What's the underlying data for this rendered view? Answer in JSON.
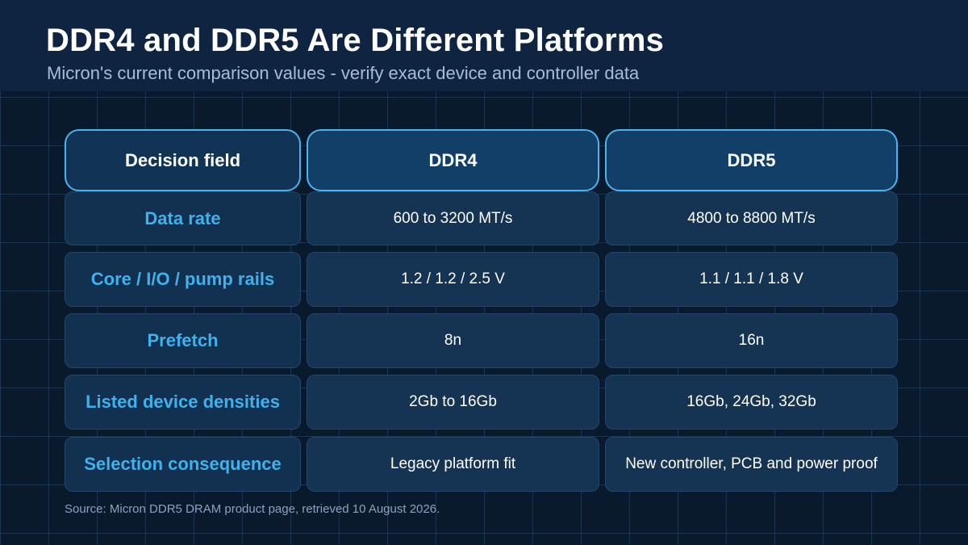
{
  "page": {
    "title": "DDR4 and DDR5 Are Different Platforms",
    "subtitle": "Micron's current comparison values - verify exact device and controller data",
    "source": "Source: Micron DDR5 DRAM product page, retrieved 10 August 2026."
  },
  "table": {
    "headers": [
      "Decision field",
      "DDR4",
      "DDR5"
    ],
    "rows": [
      {
        "field": "Data rate",
        "ddr4": "600 to 3200 MT/s",
        "ddr5": "4800 to 8800 MT/s"
      },
      {
        "field": "Core / I/O / pump rails",
        "ddr4": "1.2 / 1.2 / 2.5 V",
        "ddr5": "1.1 / 1.1 / 1.8 V"
      },
      {
        "field": "Prefetch",
        "ddr4": "8n",
        "ddr5": "16n"
      },
      {
        "field": "Listed device densities",
        "ddr4": "2Gb to 16Gb",
        "ddr5": "16Gb, 24Gb, 32Gb"
      },
      {
        "field": "Selection consequence",
        "ddr4": "Legacy platform fit",
        "ddr5": "New controller, PCB and power proof"
      }
    ]
  },
  "colors": {
    "background": "#0a1a2d",
    "header_band": "#0f2440",
    "accent": "#3fb2ee",
    "header_border": "#4db3ee",
    "cell_fill": "#153454"
  }
}
